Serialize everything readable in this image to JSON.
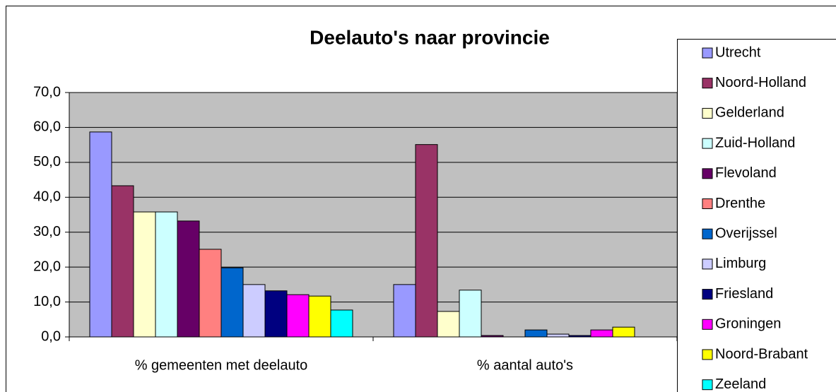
{
  "chart_data": {
    "type": "bar",
    "title": "Deelauto's naar provincie",
    "categories": [
      "% gemeenten met deelauto",
      "% aantal auto's"
    ],
    "series": [
      {
        "name": "Utrecht",
        "color": "#9999ff",
        "values": [
          58.7,
          15.0
        ]
      },
      {
        "name": "Noord-Holland",
        "color": "#993366",
        "values": [
          43.3,
          55.1
        ]
      },
      {
        "name": "Gelderland",
        "color": "#ffffcc",
        "values": [
          35.8,
          7.3
        ]
      },
      {
        "name": "Zuid-Holland",
        "color": "#ccffff",
        "values": [
          35.8,
          13.4
        ]
      },
      {
        "name": "Flevoland",
        "color": "#660066",
        "values": [
          33.2,
          0.4
        ]
      },
      {
        "name": "Drenthe",
        "color": "#ff8080",
        "values": [
          25.1,
          0
        ]
      },
      {
        "name": "Overijssel",
        "color": "#0066cc",
        "values": [
          19.8,
          2.0
        ]
      },
      {
        "name": "Limburg",
        "color": "#ccccff",
        "values": [
          15.0,
          0.8
        ]
      },
      {
        "name": "Friesland",
        "color": "#000080",
        "values": [
          13.2,
          0.4
        ]
      },
      {
        "name": "Groningen",
        "color": "#ff00ff",
        "values": [
          12.1,
          2.0
        ]
      },
      {
        "name": "Noord-Brabant",
        "color": "#ffff00",
        "values": [
          11.7,
          2.8
        ]
      },
      {
        "name": "Zeeland",
        "color": "#00ffff",
        "values": [
          7.7,
          0
        ]
      }
    ],
    "ylim": [
      0,
      70
    ],
    "yticks": [
      {
        "value": 0,
        "label": "0,0"
      },
      {
        "value": 10,
        "label": "10,0"
      },
      {
        "value": 20,
        "label": "20,0"
      },
      {
        "value": 30,
        "label": "30,0"
      },
      {
        "value": 40,
        "label": "40,0"
      },
      {
        "value": 50,
        "label": "50,0"
      },
      {
        "value": 60,
        "label": "60,0"
      },
      {
        "value": 70,
        "label": "70,0"
      }
    ],
    "grid": true,
    "legend": "right"
  }
}
